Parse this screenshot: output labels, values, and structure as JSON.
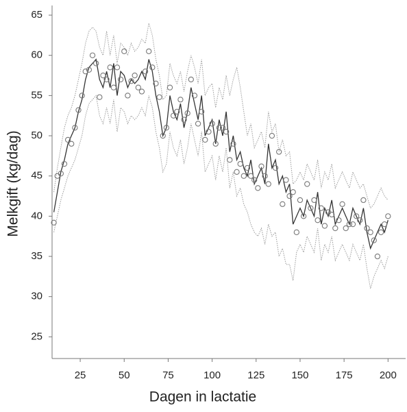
{
  "chart_data": {
    "type": "line",
    "xlabel": "Dagen in lactatie",
    "ylabel": "Melkgift (kg/dag)",
    "xlim": [
      9,
      210
    ],
    "ylim": [
      22.3,
      66.2
    ],
    "xticks": [
      25,
      50,
      75,
      100,
      125,
      150,
      175,
      200
    ],
    "yticks": [
      25,
      30,
      35,
      40,
      45,
      50,
      55,
      60,
      65
    ],
    "x": [
      10,
      12,
      14,
      16,
      18,
      20,
      22,
      24,
      26,
      28,
      30,
      32,
      34,
      36,
      38,
      40,
      42,
      44,
      46,
      48,
      50,
      52,
      54,
      56,
      58,
      60,
      62,
      64,
      66,
      68,
      70,
      72,
      74,
      76,
      78,
      80,
      82,
      84,
      86,
      88,
      90,
      92,
      94,
      96,
      98,
      100,
      102,
      104,
      106,
      108,
      110,
      112,
      114,
      116,
      118,
      120,
      122,
      124,
      126,
      128,
      130,
      132,
      134,
      136,
      138,
      140,
      142,
      144,
      146,
      148,
      150,
      152,
      154,
      156,
      158,
      160,
      162,
      164,
      166,
      168,
      170,
      172,
      174,
      176,
      178,
      180,
      182,
      184,
      186,
      188,
      190,
      192,
      194,
      196,
      198,
      200
    ],
    "series": [
      {
        "style": "dotted",
        "color": "#9a9a9a",
        "values": [
          43,
          46,
          48.5,
          51,
          52.5,
          53.5,
          55,
          57,
          59,
          61.5,
          63,
          63.5,
          63,
          61,
          60,
          63,
          60,
          62.5,
          59,
          61.5,
          61,
          60,
          61.5,
          60.5,
          61,
          62,
          61.5,
          64,
          62.5,
          59.5,
          57.5,
          54.5,
          55,
          59,
          57.5,
          56.5,
          58,
          55.5,
          58,
          60,
          58.5,
          56.5,
          59.5,
          55,
          56,
          56.5,
          53.5,
          56,
          54.5,
          57.5,
          55,
          57,
          58.5,
          56,
          53,
          50,
          51.5,
          48.5,
          49.5,
          50.5,
          48.5,
          53,
          50.5,
          51.5,
          48,
          49.5,
          47.5,
          48,
          44,
          44.5,
          45.5,
          44.5,
          46.5,
          45.5,
          44.5,
          47,
          43.5,
          45.5,
          44.5,
          46.5,
          43.5,
          44.5,
          45.5,
          44.5,
          43.5,
          45.5,
          44.5,
          43.5,
          44,
          42.5,
          41,
          41.5,
          42.5,
          43.5,
          42.5,
          42
        ]
      },
      {
        "style": "dotted",
        "color": "#9a9a9a",
        "values": [
          38,
          40,
          42,
          43.5,
          45,
          46,
          47,
          48.5,
          50,
          52.5,
          54,
          54.5,
          55,
          52.5,
          51.5,
          53.5,
          51.5,
          54.5,
          50.5,
          53.5,
          53,
          51.5,
          52.5,
          52,
          52.5,
          53.5,
          52.5,
          55,
          53.5,
          50.5,
          48.5,
          45.5,
          46.5,
          50.5,
          48.5,
          47.5,
          49.5,
          46.5,
          48.5,
          51.5,
          49.5,
          47.5,
          50.5,
          45.5,
          46.5,
          47.5,
          44.5,
          47.5,
          45.5,
          48.5,
          43.5,
          45.5,
          42.5,
          43.5,
          41.5,
          40.5,
          39,
          38,
          37.5,
          38.5,
          36.5,
          39,
          37.5,
          38,
          35,
          36,
          34,
          34,
          32,
          35.5,
          36.5,
          35.5,
          37.5,
          36.5,
          35.5,
          38.5,
          34.5,
          36.5,
          35.5,
          37.5,
          34.5,
          35.5,
          36.5,
          35.5,
          34.5,
          36.5,
          35.5,
          34.5,
          36.5,
          33.5,
          31,
          32.5,
          33.5,
          34.5,
          33.5,
          35
        ]
      },
      {
        "style": "line",
        "color": "#333333",
        "values": [
          40.5,
          43,
          45.5,
          47,
          49,
          50,
          51,
          53,
          54.5,
          57,
          58.5,
          59,
          59.5,
          57,
          56,
          58,
          56,
          59,
          55,
          58,
          57.5,
          56,
          57,
          56.5,
          57,
          58,
          57,
          59.5,
          58,
          55,
          53,
          50,
          51,
          55,
          53,
          52,
          54,
          51,
          53,
          56,
          54,
          52,
          55,
          50,
          51,
          52,
          49,
          52,
          50,
          53,
          48,
          50,
          47,
          48,
          46,
          45,
          47,
          44,
          45,
          46,
          44,
          49,
          46,
          47,
          44,
          45,
          43,
          44,
          39,
          40,
          41,
          40,
          42,
          41,
          40,
          43,
          39,
          41,
          40,
          42,
          39,
          40,
          41,
          40,
          39,
          41,
          40,
          39,
          41,
          38,
          36,
          37,
          38,
          39,
          38,
          39.5
        ]
      },
      {
        "style": "markers",
        "color": "#777777",
        "values": [
          39.2,
          45,
          45.3,
          46.5,
          49.5,
          49,
          51,
          53.2,
          55,
          58,
          58.2,
          60,
          59,
          54.8,
          57.5,
          57,
          58.5,
          56,
          58.5,
          57,
          60.5,
          55,
          56.8,
          57.5,
          56,
          55.5,
          58,
          60.5,
          58.5,
          56.5,
          54.8,
          50,
          51,
          56,
          52.5,
          53,
          54.5,
          52,
          52.8,
          57,
          55,
          51.5,
          53,
          49.5,
          50.5,
          51.5,
          49,
          51,
          51,
          50.5,
          47,
          49,
          45.5,
          46.5,
          45,
          46,
          45,
          44.5,
          43.5,
          46.2,
          45,
          44,
          50,
          46,
          48,
          41.5,
          44.5,
          42.5,
          43,
          38,
          42,
          40,
          44,
          41,
          42,
          39.5,
          41,
          38.8,
          40.5,
          40.2,
          38.5,
          39.5,
          41.5,
          38.5,
          39,
          39,
          40,
          39.5,
          42,
          38.5,
          38,
          37,
          35,
          38,
          39,
          40
        ]
      }
    ]
  }
}
